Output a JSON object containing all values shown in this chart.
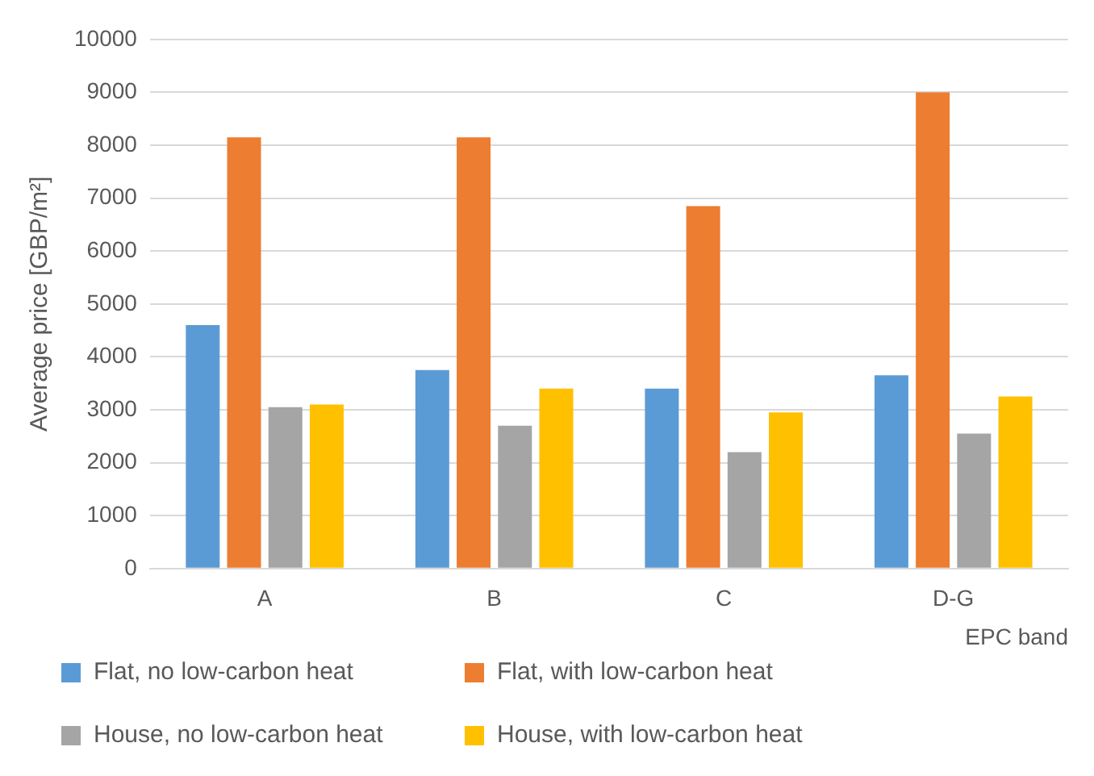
{
  "chart_data": {
    "type": "bar",
    "xlabel": "EPC band",
    "ylabel": "Average price [GBP/m²]",
    "categories": [
      "A",
      "B",
      "C",
      "D-G"
    ],
    "series": [
      {
        "name": "Flat, no low-carbon heat",
        "color": "#5b9bd5",
        "values": [
          4600,
          3750,
          3400,
          3650
        ]
      },
      {
        "name": "Flat, with low-carbon heat",
        "color": "#ed7d31",
        "values": [
          8150,
          8150,
          6850,
          9000
        ]
      },
      {
        "name": "House, no low-carbon heat",
        "color": "#a5a5a5",
        "values": [
          3050,
          2700,
          2200,
          2550
        ]
      },
      {
        "name": "House, with low-carbon heat",
        "color": "#ffc000",
        "values": [
          3100,
          3400,
          2950,
          3250
        ]
      }
    ],
    "ylim": [
      0,
      10000
    ],
    "yticks": [
      0,
      1000,
      2000,
      3000,
      4000,
      5000,
      6000,
      7000,
      8000,
      9000,
      10000
    ],
    "grid": "y",
    "legend": "bottom"
  }
}
